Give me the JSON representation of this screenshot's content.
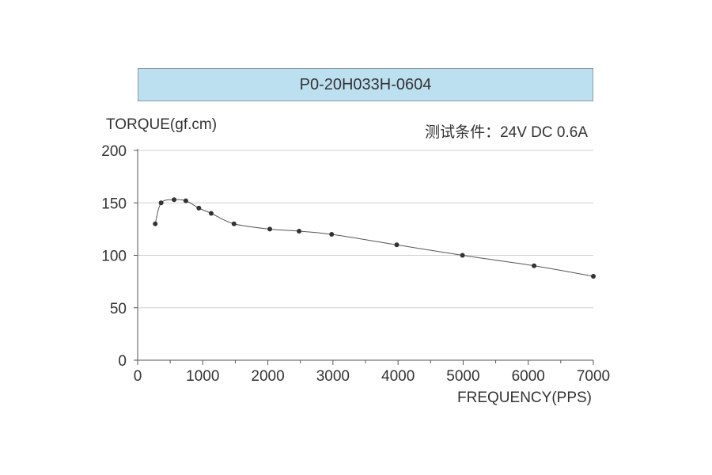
{
  "chart_data": {
    "type": "line",
    "title": "P0-20H033H-0604",
    "condition": "测试条件：24V DC   0.6A",
    "xlabel": "FREQUENCY(PPS)",
    "ylabel": "TORQUE(gf.cm)",
    "xlim": [
      0,
      7000
    ],
    "ylim": [
      0,
      200
    ],
    "xticks": [
      0,
      1000,
      2000,
      3000,
      4000,
      5000,
      6000,
      7000
    ],
    "yticks": [
      0,
      50,
      100,
      150,
      200
    ],
    "grid": "horizontal",
    "series": [
      {
        "x": [
          270,
          360,
          560,
          740,
          940,
          1130,
          1480,
          2030,
          2480,
          2980,
          3980,
          4990,
          6090,
          7000
        ],
        "y": [
          130,
          150,
          153,
          152,
          145,
          140,
          130,
          125,
          123,
          120,
          110,
          100,
          90,
          80
        ]
      }
    ],
    "colors": {
      "line": "#555555",
      "marker": "#333333",
      "grid": "#d0d0d0",
      "title_bg": "#bde0f0"
    }
  }
}
